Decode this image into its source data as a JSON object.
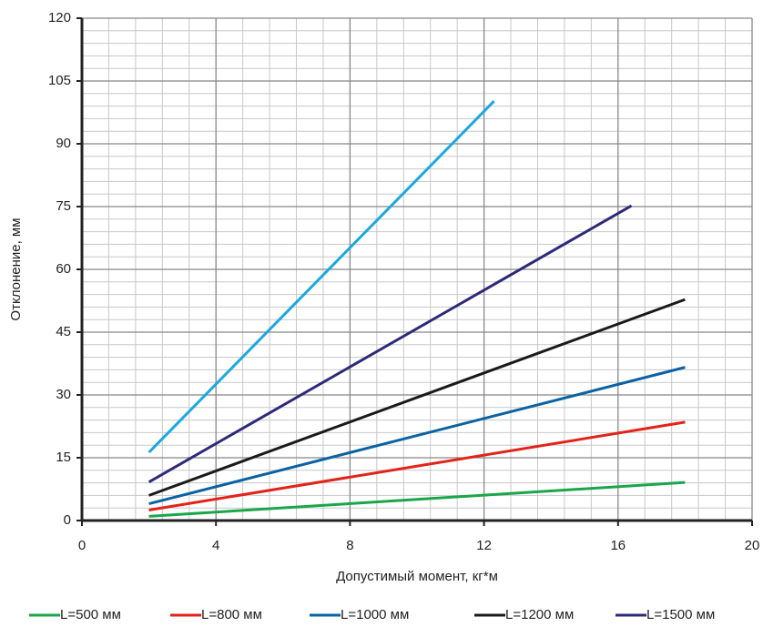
{
  "chart_data": {
    "type": "line",
    "x_label": "Допустимый момент, кг*м",
    "y_label": "Отклонение, мм",
    "xlim": [
      0,
      20
    ],
    "xticks": [
      0,
      4,
      8,
      12,
      16,
      20
    ],
    "ylim": [
      0,
      120
    ],
    "yticks": [
      0,
      15,
      30,
      45,
      60,
      75,
      90,
      105,
      120
    ],
    "grid": true,
    "minor_grid_divisions": 5,
    "legend": "bottom",
    "series": [
      {
        "name": "L=500 мм",
        "color": "#1aa64a",
        "x": [
          2,
          18
        ],
        "values": [
          1,
          9.1
        ]
      },
      {
        "name": "L=800 мм",
        "color": "#e2231a",
        "x": [
          2,
          18
        ],
        "values": [
          2.5,
          23.5
        ]
      },
      {
        "name": "L=1000 мм",
        "color": "#0a62a4",
        "x": [
          2,
          18
        ],
        "values": [
          4,
          36.6
        ]
      },
      {
        "name": "L=1200 мм",
        "color": "#1a1a1a",
        "x": [
          2,
          18
        ],
        "values": [
          6,
          52.8
        ]
      },
      {
        "name": "L=1500 мм",
        "color": "#2e2a7a",
        "x": [
          2,
          16.4
        ],
        "values": [
          9.2,
          75.2
        ]
      },
      {
        "color": "#1ba8e0",
        "x": [
          2,
          12.3
        ],
        "values": [
          16.3,
          100.2
        ]
      }
    ]
  }
}
